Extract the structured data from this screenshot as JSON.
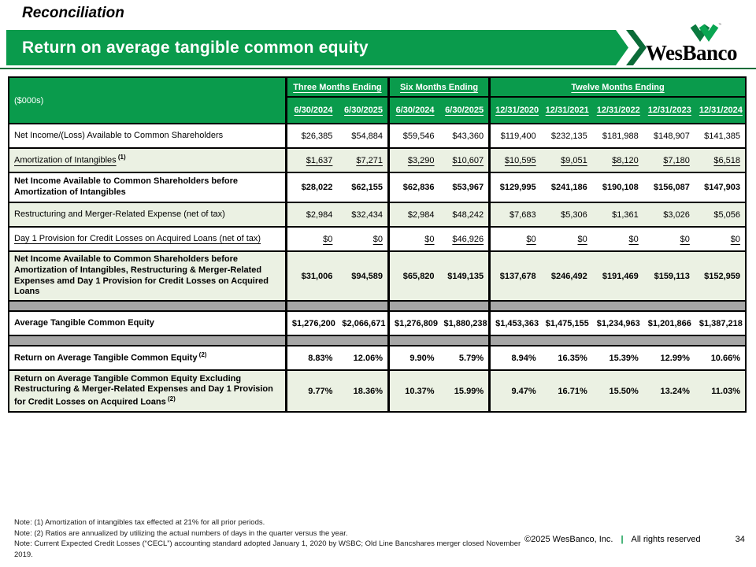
{
  "page": {
    "kicker": "Reconciliation",
    "title": "Return on average tangible common equity",
    "logo_text": "WesBanco",
    "page_number": "34"
  },
  "colors": {
    "accent_green": "#0A9B4C",
    "dark_green": "#0B6B38",
    "row_light_green": "#EBF1E3",
    "spacer_gray": "#A6A6A6"
  },
  "table": {
    "unit_label": "($000s)",
    "groups": [
      {
        "label": "Three Months Ending",
        "cols": [
          "6/30/2024",
          "6/30/2025"
        ]
      },
      {
        "label": "Six Months Ending",
        "cols": [
          "6/30/2024",
          "6/30/2025"
        ]
      },
      {
        "label": "Twelve Months Ending",
        "cols": [
          "12/31/2020",
          "12/31/2021",
          "12/31/2022",
          "12/31/2023",
          "12/31/2024"
        ]
      }
    ],
    "rows": [
      {
        "label": "Net Income/(Loss) Available to Common Shareholders",
        "bg": "white",
        "bold": false,
        "underline": false,
        "h": "h1",
        "values": [
          "$26,385",
          "$54,884",
          "$59,546",
          "$43,360",
          "$119,400",
          "$232,135",
          "$181,988",
          "$148,907",
          "$141,385"
        ]
      },
      {
        "label": "Amortization of Intangibles",
        "sup": "(1)",
        "bg": "green",
        "bold": false,
        "underline": true,
        "h": "h1",
        "values": [
          "$1,637",
          "$7,271",
          "$3,290",
          "$10,607",
          "$10,595",
          "$9,051",
          "$8,120",
          "$7,180",
          "$6,518"
        ]
      },
      {
        "label": "Net Income Available to Common Shareholders before Amortization of Intangibles",
        "bg": "white",
        "bold": true,
        "underline": false,
        "h": "h2",
        "values": [
          "$28,022",
          "$62,155",
          "$62,836",
          "$53,967",
          "$129,995",
          "$241,186",
          "$190,108",
          "$156,087",
          "$147,903"
        ]
      },
      {
        "label": "Restructuring and Merger-Related Expense (net of tax)",
        "bg": "green",
        "bold": false,
        "underline": false,
        "h": "h1",
        "values": [
          "$2,984",
          "$32,434",
          "$2,984",
          "$48,242",
          "$7,683",
          "$5,306",
          "$1,361",
          "$3,026",
          "$5,056"
        ]
      },
      {
        "label": "Day 1 Provision for Credit Losses on Acquired Loans (net of tax)",
        "bg": "white",
        "bold": false,
        "underline": true,
        "h": "h1",
        "values": [
          "$0",
          "$0",
          "$0",
          "$46,926",
          "$0",
          "$0",
          "$0",
          "$0",
          "$0"
        ]
      },
      {
        "label": "Net Income Available to Common Shareholders before Amortization of Intangibles, Restructuring & Merger-Related Expenses amd Day 1 Provision for Credit Losses on Acquired Loans",
        "bg": "green",
        "bold": true,
        "underline": false,
        "h": "h3",
        "values": [
          "$31,006",
          "$94,589",
          "$65,820",
          "$149,135",
          "$137,678",
          "$246,492",
          "$191,469",
          "$159,113",
          "$152,959"
        ]
      },
      {
        "spacer": true
      },
      {
        "label": "Average Tangible Common Equity",
        "bg": "white",
        "bold": true,
        "underline": false,
        "h": "h1",
        "values": [
          "$1,276,200",
          "$2,066,671",
          "$1,276,809",
          "$1,880,238",
          "$1,453,363",
          "$1,475,155",
          "$1,234,963",
          "$1,201,866",
          "$1,387,218"
        ]
      },
      {
        "spacer": true
      },
      {
        "label": "Return on Average Tangible Common Equity",
        "sup": "(2)",
        "bg": "white",
        "bold": true,
        "underline": false,
        "h": "h1",
        "values": [
          "8.83%",
          "12.06%",
          "9.90%",
          "5.79%",
          "8.94%",
          "16.35%",
          "15.39%",
          "12.99%",
          "10.66%"
        ]
      },
      {
        "label": "Return on Average Tangible Common Equity Excluding Restructuring & Merger-Related Expenses and Day 1 Provision for Credit Losses on Acquired Loans",
        "sup": "(2)",
        "bg": "green",
        "bold": true,
        "underline": false,
        "h": "h3",
        "values": [
          "9.77%",
          "18.36%",
          "10.37%",
          "15.99%",
          "9.47%",
          "16.71%",
          "15.50%",
          "13.24%",
          "11.03%"
        ]
      }
    ]
  },
  "footer": {
    "notes": [
      "Note: (1) Amortization of intangibles tax effected at 21% for all prior periods.",
      "Note: (2) Ratios are annualized by utilizing the actual numbers of days in the quarter versus the year.",
      "Note: Current Expected Credit Losses (“CECL”) accounting standard adopted January 1, 2020 by WSBC; Old Line Bancshares merger closed November 2019."
    ],
    "copyright": "©2025 WesBanco, Inc.",
    "separator": "|",
    "rights": "All rights reserved"
  }
}
